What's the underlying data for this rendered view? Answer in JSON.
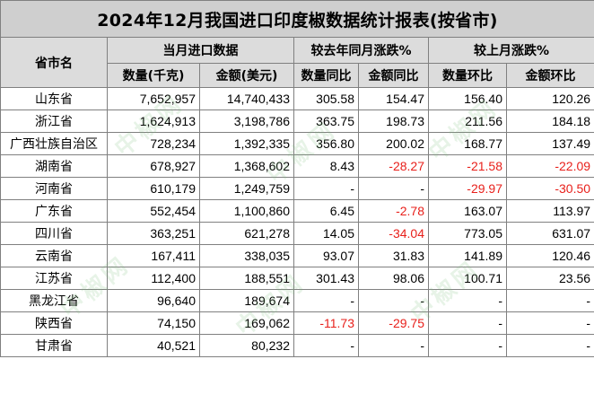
{
  "title": "2024年12月我国进口印度椒数据统计报表(按省市)",
  "headers": {
    "province": "省市名",
    "group_current": "当月进口数据",
    "group_yoy": "较去年同月涨跌%",
    "group_mom": "较上月涨跌%",
    "qty": "数量(千克)",
    "amount": "金额(美元)",
    "qty_yoy": "数量同比",
    "amount_yoy": "金额同比",
    "qty_mom": "数量环比",
    "amount_mom": "金额环比"
  },
  "rows": [
    {
      "name": "山东省",
      "qty": "7,652,957",
      "amount": "14,740,433",
      "qty_yoy": "305.58",
      "amount_yoy": "154.47",
      "qty_mom": "156.40",
      "amount_mom": "120.26"
    },
    {
      "name": "浙江省",
      "qty": "1,624,913",
      "amount": "3,198,786",
      "qty_yoy": "363.75",
      "amount_yoy": "198.73",
      "qty_mom": "211.56",
      "amount_mom": "184.18"
    },
    {
      "name": "广西壮族自治区",
      "qty": "728,234",
      "amount": "1,392,335",
      "qty_yoy": "356.80",
      "amount_yoy": "200.02",
      "qty_mom": "168.77",
      "amount_mom": "137.49"
    },
    {
      "name": "湖南省",
      "qty": "678,927",
      "amount": "1,368,602",
      "qty_yoy": "8.43",
      "amount_yoy": "-28.27",
      "qty_mom": "-21.58",
      "amount_mom": "-22.09"
    },
    {
      "name": "河南省",
      "qty": "610,179",
      "amount": "1,249,759",
      "qty_yoy": "-",
      "amount_yoy": "-",
      "qty_mom": "-29.97",
      "amount_mom": "-30.50"
    },
    {
      "name": "广东省",
      "qty": "552,454",
      "amount": "1,100,860",
      "qty_yoy": "6.45",
      "amount_yoy": "-2.78",
      "qty_mom": "163.07",
      "amount_mom": "113.97"
    },
    {
      "name": "四川省",
      "qty": "363,251",
      "amount": "621,278",
      "qty_yoy": "14.05",
      "amount_yoy": "-34.04",
      "qty_mom": "773.05",
      "amount_mom": "631.07"
    },
    {
      "name": "云南省",
      "qty": "167,411",
      "amount": "338,035",
      "qty_yoy": "93.07",
      "amount_yoy": "31.83",
      "qty_mom": "141.89",
      "amount_mom": "120.46"
    },
    {
      "name": "江苏省",
      "qty": "112,400",
      "amount": "188,551",
      "qty_yoy": "301.43",
      "amount_yoy": "98.06",
      "qty_mom": "100.71",
      "amount_mom": "23.56"
    },
    {
      "name": "黑龙江省",
      "qty": "96,640",
      "amount": "189,674",
      "qty_yoy": "-",
      "amount_yoy": "-",
      "qty_mom": "-",
      "amount_mom": "-"
    },
    {
      "name": "陕西省",
      "qty": "74,150",
      "amount": "169,062",
      "qty_yoy": "-11.73",
      "amount_yoy": "-29.75",
      "qty_mom": "-",
      "amount_mom": "-"
    },
    {
      "name": "甘肃省",
      "qty": "40,521",
      "amount": "80,232",
      "qty_yoy": "-",
      "amount_yoy": "-",
      "qty_mom": "-",
      "amount_mom": "-"
    }
  ],
  "colors": {
    "negative": "#e8201b",
    "header_bg": "#dcdcdc",
    "title_bg": "#cfcfcf",
    "border": "#808080",
    "watermark": "rgba(120,190,120,0.18)"
  },
  "watermark_text": "中椒网"
}
